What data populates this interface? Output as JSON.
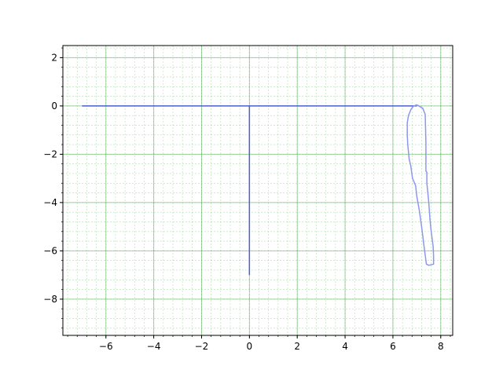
{
  "chart_data": {
    "type": "line",
    "title": "",
    "xlabel": "",
    "ylabel": "",
    "xlim": [
      -7.8,
      8.5
    ],
    "ylim": [
      -9.5,
      2.5
    ],
    "grid": {
      "major": true,
      "minor": true,
      "color": "#2ca02c"
    },
    "x_ticks": [
      -6,
      -4,
      -2,
      0,
      2,
      4,
      6,
      8
    ],
    "y_ticks": [
      2,
      0,
      -2,
      -4,
      -6,
      -8
    ],
    "x_tick_labels": [
      "−6",
      "−4",
      "−2",
      "0",
      "2",
      "4",
      "6",
      "8"
    ],
    "y_tick_labels": [
      "2",
      "0",
      "−2",
      "−4",
      "−6",
      "−8"
    ],
    "series": [
      {
        "color": "#4d5fd0",
        "x": [
          -7,
          7
        ],
        "y": [
          0,
          0
        ]
      },
      {
        "color": "#4d5fd0",
        "x": [
          0,
          0
        ],
        "y": [
          0,
          -7
        ]
      },
      {
        "color": "#8f96ef",
        "x": [
          7.0,
          7.25,
          7.35,
          7.38,
          7.38,
          7.42,
          7.42,
          7.5,
          7.55,
          7.6,
          7.68,
          7.7,
          7.7,
          7.5,
          7.4,
          7.38,
          7.3,
          7.2,
          7.1,
          7.0,
          6.95,
          6.82,
          6.75,
          6.68,
          6.65,
          6.62,
          6.6,
          6.6,
          6.65,
          6.75,
          6.85,
          7.0
        ],
        "y": [
          0.05,
          -0.1,
          -0.35,
          -1.5,
          -2.7,
          -2.75,
          -3.2,
          -4.0,
          -4.7,
          -5.2,
          -5.8,
          -6.2,
          -6.55,
          -6.6,
          -6.55,
          -6.4,
          -5.8,
          -5.0,
          -4.3,
          -3.75,
          -3.3,
          -3.0,
          -2.5,
          -2.2,
          -1.9,
          -1.6,
          -1.2,
          -0.7,
          -0.4,
          -0.15,
          -0.02,
          0.05
        ]
      }
    ]
  }
}
